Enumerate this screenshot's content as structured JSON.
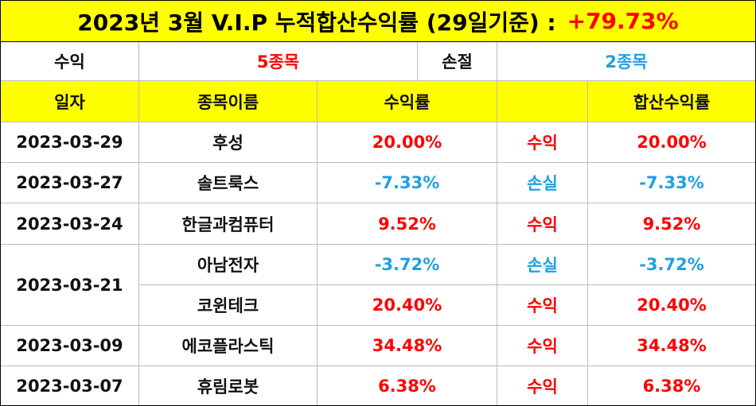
{
  "title": {
    "text": "2023년 3월 V.I.P 누적합산수익률 (29일기준) :",
    "value": "+79.73%"
  },
  "summary": {
    "profit_label": "수익",
    "profit_value": "5종목",
    "loss_label": "손절",
    "loss_value": "2종목"
  },
  "headers": {
    "date": "일자",
    "name": "종목이름",
    "rate": "수익률",
    "status": "",
    "sum": "합산수익률"
  },
  "rows": [
    {
      "date": "2023-03-29",
      "name": "후성",
      "rate": "20.00%",
      "status": "수익",
      "sum": "20.00%"
    },
    {
      "date": "2023-03-27",
      "name": "솔트룩스",
      "rate": "-7.33%",
      "status": "손실",
      "sum": "-7.33%"
    },
    {
      "date": "2023-03-24",
      "name": "한글과컴퓨터",
      "rate": "9.52%",
      "status": "수익",
      "sum": "9.52%"
    },
    {
      "date": "2023-03-21",
      "name": "아남전자",
      "rate": "-3.72%",
      "status": "손실",
      "sum": "-3.72%"
    },
    {
      "date": "",
      "name": "코윈테크",
      "rate": "20.40%",
      "status": "수익",
      "sum": "20.40%"
    },
    {
      "date": "2023-03-09",
      "name": "에코플라스틱",
      "rate": "34.48%",
      "status": "수익",
      "sum": "34.48%"
    },
    {
      "date": "2023-03-07",
      "name": "휴림로봇",
      "rate": "6.38%",
      "status": "수익",
      "sum": "6.38%"
    }
  ],
  "colors": {
    "highlight_yellow": "#ffff00",
    "profit_red": "#ff0000",
    "loss_blue": "#1fa0e0"
  }
}
